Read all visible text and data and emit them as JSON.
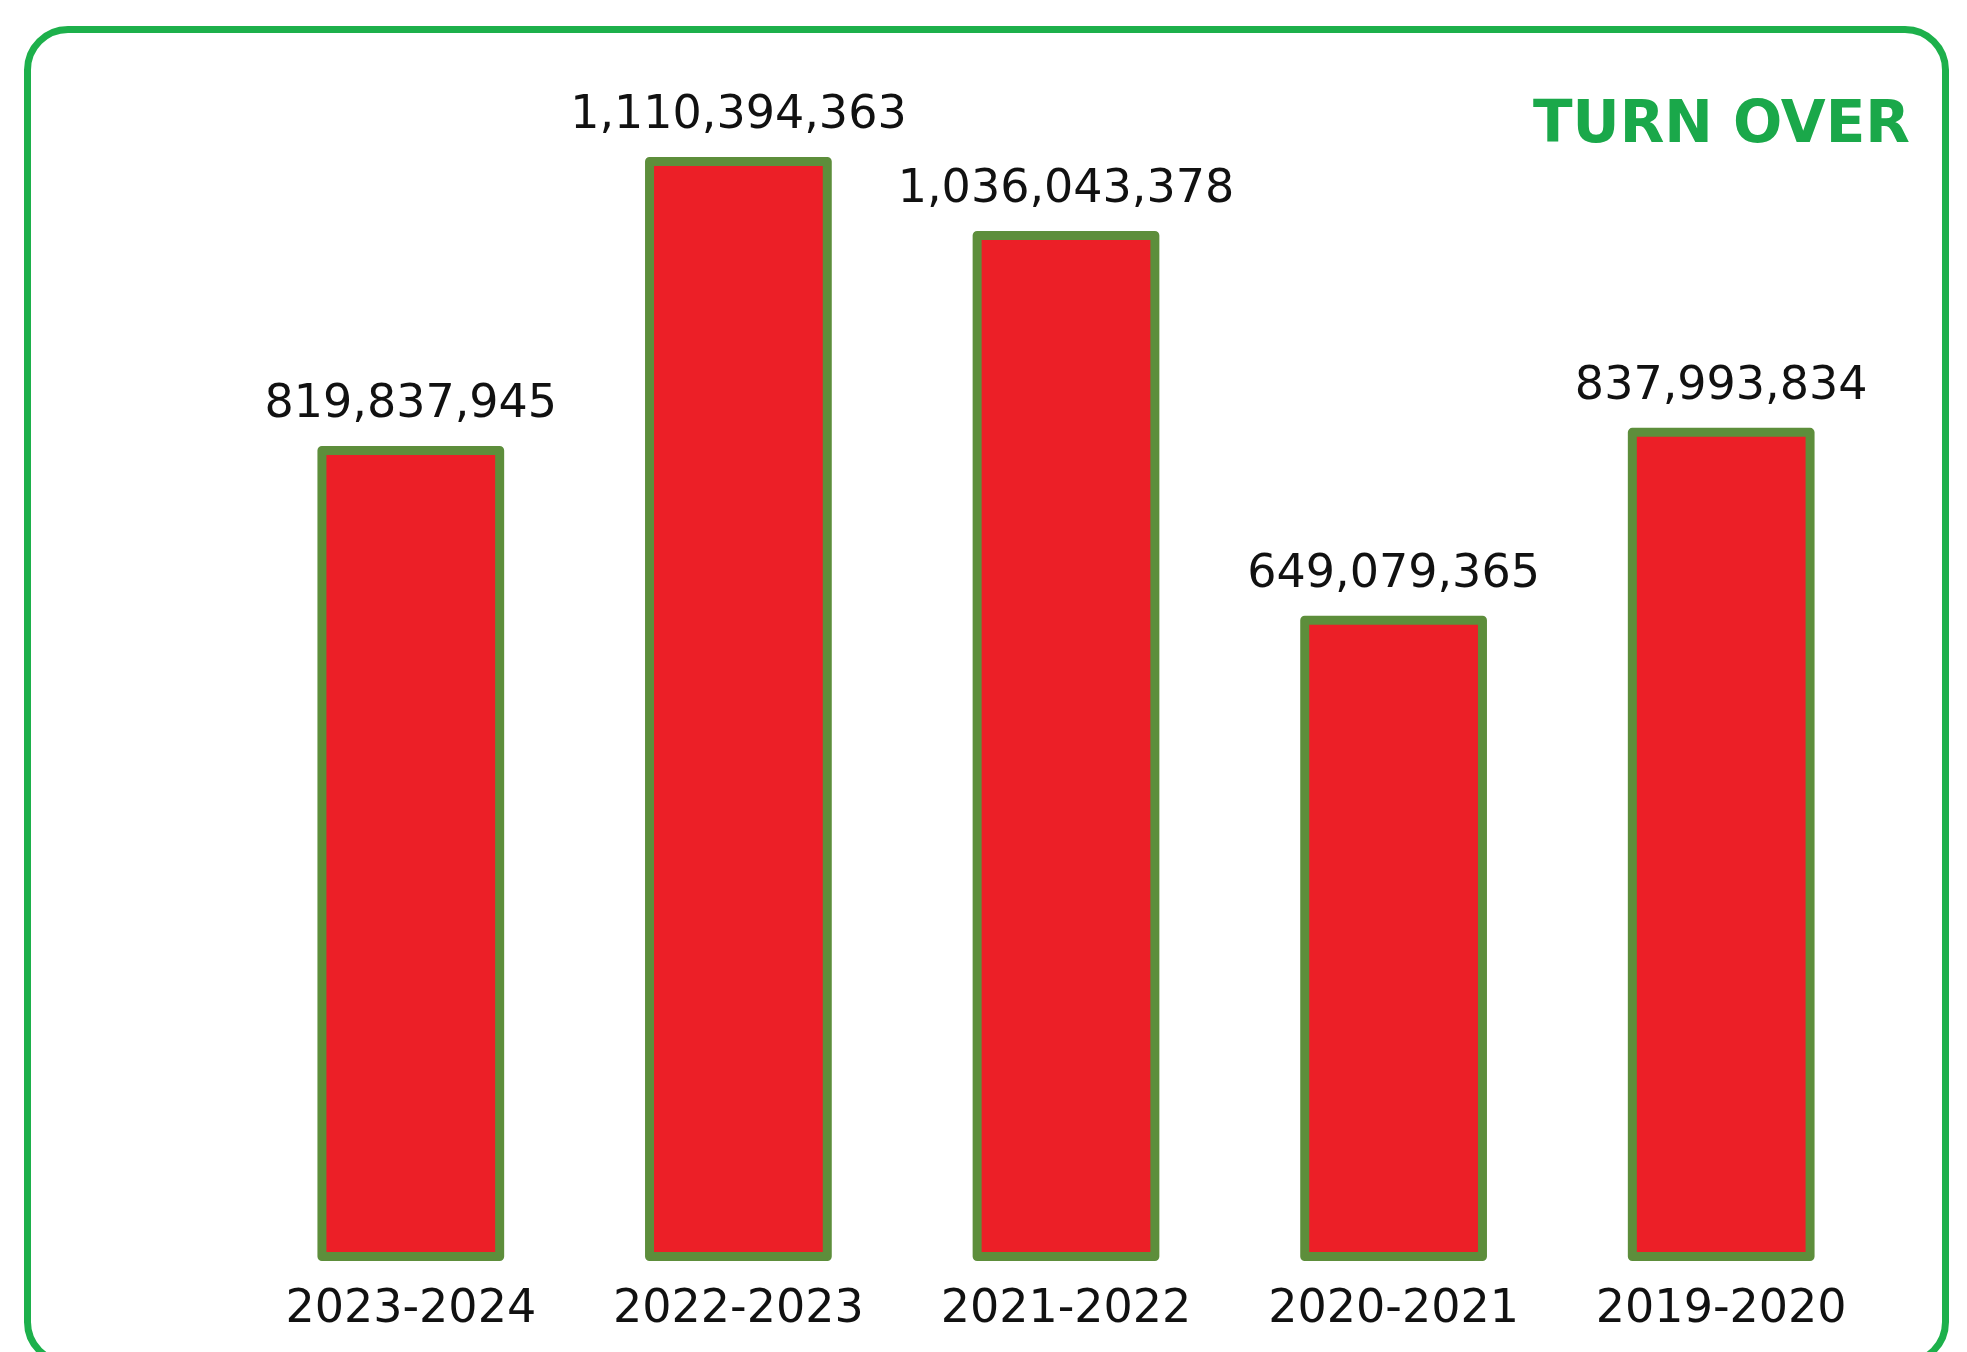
{
  "chart_data": {
    "type": "bar",
    "title": "TURN OVER",
    "categories": [
      "2023-2024",
      "2022-2023",
      "2021-2022",
      "2020-2021",
      "2019-2020"
    ],
    "values": [
      819837945,
      1110394363,
      1036043378,
      649079365,
      837993834
    ],
    "value_labels": [
      "819,837,945",
      "1,110,394,363",
      "1,036,043,378",
      "649,079,365",
      "837,993,834"
    ],
    "color": "#ec1f27",
    "grid": false
  }
}
